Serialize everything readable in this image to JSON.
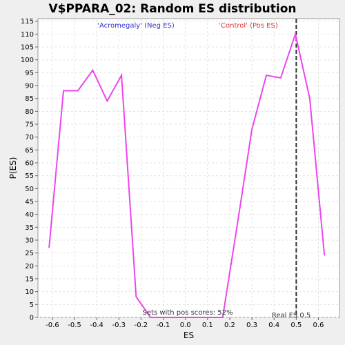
{
  "chart_data": {
    "type": "line",
    "title": "V$PPARA_02: Random ES distribution",
    "xlabel": "ES",
    "ylabel": "P(ES)",
    "xlim": [
      -0.665,
      0.695
    ],
    "ylim": [
      0,
      116
    ],
    "xticks": [
      -0.6,
      -0.5,
      -0.4,
      -0.3,
      -0.2,
      -0.1,
      0.0,
      0.1,
      0.2,
      0.3,
      0.4,
      0.5,
      0.6
    ],
    "xtick_labels": [
      "-0.6",
      "-0.5",
      "-0.4",
      "-0.3",
      "-0.2",
      "-0.1",
      "0.0",
      "0.1",
      "0.2",
      "0.3",
      "0.4",
      "0.5",
      "0.6"
    ],
    "yticks": [
      0,
      5,
      10,
      15,
      20,
      25,
      30,
      35,
      40,
      45,
      50,
      55,
      60,
      65,
      70,
      75,
      80,
      85,
      90,
      95,
      100,
      105,
      110,
      115
    ],
    "ytick_labels": [
      "0",
      "5",
      "10",
      "15",
      "20",
      "25",
      "30",
      "35",
      "40",
      "45",
      "50",
      "55",
      "60",
      "65",
      "70",
      "75",
      "80",
      "85",
      "90",
      "95",
      "100",
      "105",
      "110",
      "115"
    ],
    "grid": true,
    "series": [
      {
        "color": "#ee44ee",
        "x": [
          -0.615,
          -0.55,
          -0.485,
          -0.418,
          -0.353,
          -0.288,
          -0.222,
          -0.157,
          -0.092,
          -0.027,
          0.038,
          0.103,
          0.168,
          0.234,
          0.3,
          0.365,
          0.43,
          0.496,
          0.561,
          0.627
        ],
        "y": [
          27,
          88,
          88,
          96,
          84,
          94,
          8,
          0,
          0,
          0,
          0,
          0,
          0,
          36,
          73,
          94,
          93,
          110,
          85,
          24
        ]
      }
    ],
    "reference_line": {
      "x": 0.5,
      "label": "Real ES 0.5",
      "color": "#333333"
    },
    "annotations": {
      "neg": {
        "text": "'Acromegaly' (Neg ES)",
        "color": "#3333cc"
      },
      "pos": {
        "text": "'Control' (Pos ES)",
        "color": "#dd3333"
      },
      "sets": {
        "text": "Sets with pos scores: 52%",
        "color": "#333333"
      }
    }
  }
}
